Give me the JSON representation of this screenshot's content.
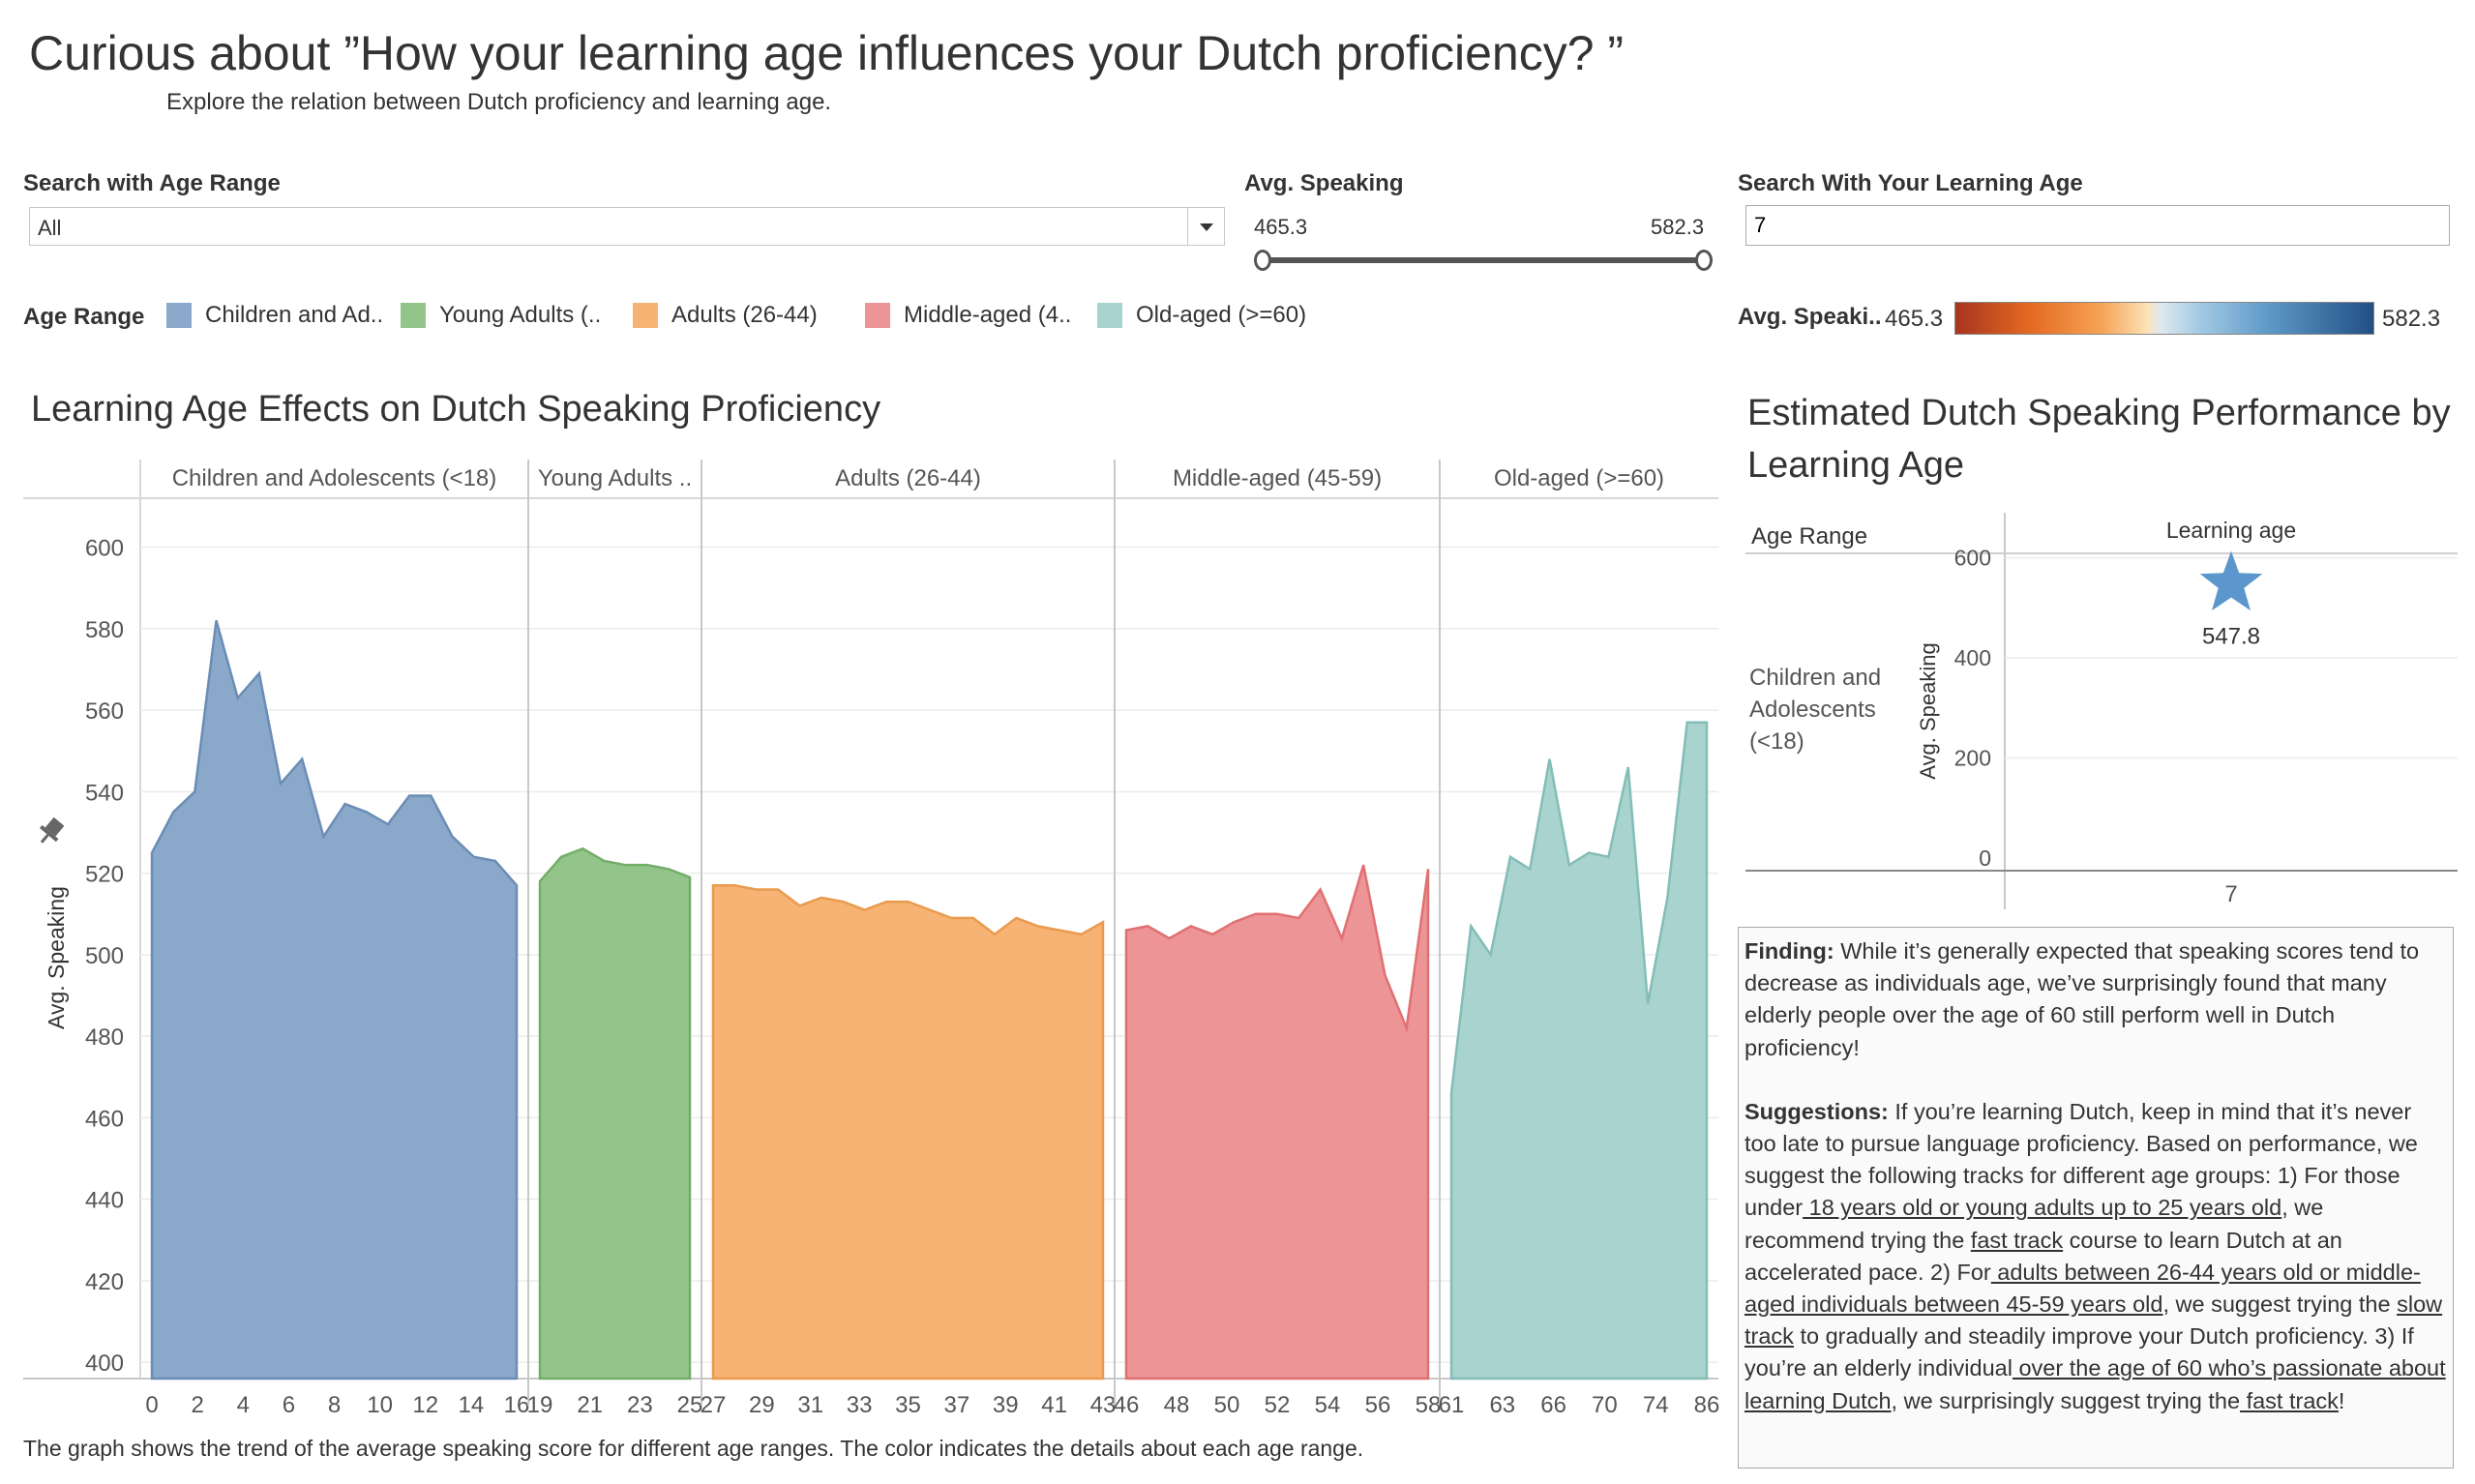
{
  "header": {
    "title": "Curious about ”How your learning age influences your Dutch proficiency? ”",
    "subtitle": "Explore the relation between Dutch proficiency and learning age."
  },
  "filters": {
    "age_range": {
      "label": "Search with Age Range",
      "value": "All"
    },
    "avg_speaking": {
      "label": "Avg. Speaking",
      "min": "465.3",
      "max": "582.3"
    },
    "learning_age": {
      "label": "Search With Your Learning Age",
      "value": "7"
    }
  },
  "legend": {
    "title": "Age Range",
    "items": [
      {
        "label": "Children and Ad..",
        "color": "#8aa8c9"
      },
      {
        "label": "Young Adults (..",
        "color": "#93c58a"
      },
      {
        "label": "Adults (26-44)",
        "color": "#f6b373"
      },
      {
        "label": "Middle-aged (4..",
        "color": "#ec9496"
      },
      {
        "label": "Old-aged (>=60)",
        "color": "#a8d3ce"
      }
    ]
  },
  "color_scale": {
    "label": "Avg. Speaki..",
    "min": "465.3",
    "max": "582.3"
  },
  "chart_data": [
    {
      "type": "area",
      "title": "Learning Age Effects on Dutch Speaking Proficiency",
      "xlabel": "",
      "ylabel": "Avg. Speaking",
      "ylim": [
        396,
        612
      ],
      "yticks": [
        400,
        420,
        440,
        460,
        480,
        500,
        520,
        540,
        560,
        580,
        600
      ],
      "caption": "The graph shows the trend of the average speaking score for different age ranges. The color indicates the details about each age range.",
      "panels": [
        {
          "name": "Children and Adolescents (<18)",
          "color": "#8aa8c9",
          "stroke": "#6b8db5",
          "ticks": [
            "0",
            "2",
            "4",
            "6",
            "8",
            "10",
            "12",
            "14",
            "16"
          ],
          "x": [
            0,
            1,
            2,
            3,
            4,
            5,
            6,
            7,
            8,
            9,
            10,
            11,
            12,
            13,
            14,
            15,
            16,
            17
          ],
          "values": [
            525,
            535,
            540,
            582,
            563,
            569,
            542,
            548,
            529,
            537,
            535,
            532,
            539,
            539,
            529,
            524,
            523,
            517
          ]
        },
        {
          "name": "Young Adults ..",
          "color": "#93c58a",
          "stroke": "#74ad6a",
          "ticks": [
            "19",
            "21",
            "23",
            "25"
          ],
          "x": [
            18,
            19,
            20,
            21,
            22,
            23,
            24,
            25
          ],
          "values": [
            518,
            524,
            526,
            523,
            522,
            522,
            521,
            519
          ]
        },
        {
          "name": "Adults (26-44)",
          "color": "#f6b373",
          "stroke": "#e99a4f",
          "ticks": [
            "27",
            "29",
            "31",
            "33",
            "35",
            "37",
            "39",
            "41",
            "43"
          ],
          "x": [
            26,
            27,
            28,
            29,
            30,
            31,
            32,
            33,
            34,
            35,
            36,
            37,
            38,
            39,
            40,
            41,
            42,
            43,
            44
          ],
          "values": [
            517,
            517,
            516,
            516,
            512,
            514,
            513,
            511,
            513,
            513,
            511,
            509,
            509,
            505,
            509,
            507,
            506,
            505,
            508
          ]
        },
        {
          "name": "Middle-aged (45-59)",
          "color": "#ec9496",
          "stroke": "#e07072",
          "ticks": [
            "46",
            "48",
            "50",
            "52",
            "54",
            "56",
            "58"
          ],
          "x": [
            45,
            46,
            47,
            48,
            49,
            50,
            51,
            52,
            53,
            54,
            55,
            56,
            57,
            58,
            59
          ],
          "values": [
            506,
            507,
            504,
            507,
            505,
            508,
            510,
            510,
            509,
            516,
            504,
            522,
            495,
            482,
            521
          ]
        },
        {
          "name": "Old-aged (>=60)",
          "color": "#a8d3ce",
          "stroke": "#84bdb7",
          "ticks": [
            "61",
            "63",
            "66",
            "70",
            "74",
            "86"
          ],
          "x": [
            60,
            61,
            62,
            63,
            64,
            65,
            66,
            67,
            68,
            69,
            70,
            71,
            72,
            73
          ],
          "values": [
            466,
            507,
            500,
            524,
            521,
            548,
            522,
            525,
            524,
            546,
            488,
            514,
            557,
            557
          ]
        }
      ]
    },
    {
      "type": "scatter",
      "title": "Estimated Dutch Speaking Performance by Learning Age",
      "row_header": "Age Range",
      "column_header": "Learning age",
      "row_label": "Children and Adolescents (<18)",
      "ylabel": "Avg. Speaking",
      "ylim": [
        0,
        600
      ],
      "yticks": [
        0,
        200,
        400,
        600
      ],
      "x_value": "7",
      "value": 547.8,
      "value_label": "547.8",
      "marker": "star",
      "marker_color": "#5b97cc"
    }
  ],
  "finding": {
    "finding_label": "Finding:",
    "finding_text": " While it’s generally expected that speaking scores tend to decrease as individuals age, we’ve surprisingly found that many elderly people over the age of 60 still perform well in Dutch proficiency!",
    "suggestions_label": "Suggestions:",
    "s1": " If you’re learning Dutch, keep in mind that it’s never too late to pursue language proficiency. Based on performance, we suggest the following tracks for different age groups: 1) For those under",
    "s1_link": " 18 years old or young adults up to 25 years old",
    "s2": ", we recommend trying the ",
    "s2_link": "fast track",
    "s3": " course to learn Dutch at an accelerated pace. 2) For",
    "s3_link": " adults between 26-44 years old or middle-aged individuals between 45-59 years old",
    "s4": ", we suggest trying the ",
    "s4_link": "slow track",
    "s5": " to gradually and steadily improve your Dutch proficiency. 3) If you’re an elderly individual",
    "s5_link": " over the age of 60 who’s passionate about learning Dutch",
    "s6": ", we surprisingly suggest trying the",
    "s6_link": " fast track",
    "s7": "!"
  }
}
